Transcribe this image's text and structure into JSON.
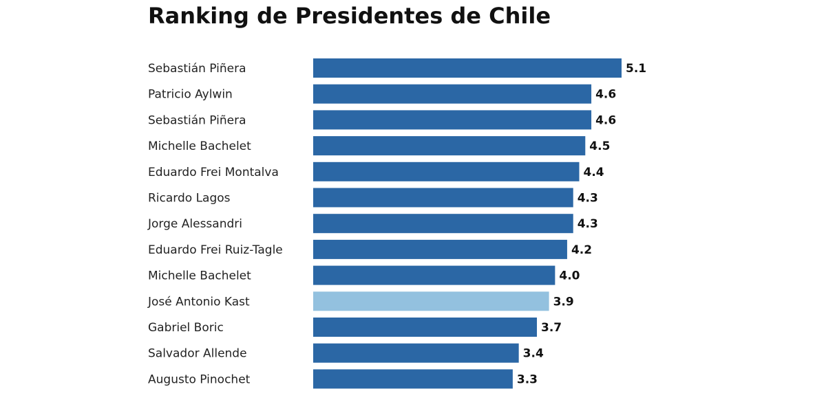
{
  "chart_data": {
    "type": "bar",
    "orientation": "horizontal",
    "title": "Ranking de Presidentes de Chile",
    "categories": [
      "Sebastián Piñera",
      "Patricio Aylwin",
      "Sebastián Piñera",
      "Michelle Bachelet",
      "Eduardo Frei Montalva",
      "Ricardo Lagos",
      "Jorge Alessandri",
      "Eduardo Frei Ruiz-Tagle",
      "Michelle Bachelet",
      "José Antonio Kast",
      "Gabriel Boric",
      "Salvador Allende",
      "Augusto Pinochet"
    ],
    "values": [
      5.1,
      4.6,
      4.6,
      4.5,
      4.4,
      4.3,
      4.3,
      4.2,
      4.0,
      3.9,
      3.7,
      3.4,
      3.3
    ],
    "value_labels": [
      "5.1",
      "4.6",
      "4.6",
      "4.5",
      "4.4",
      "4.3",
      "4.3",
      "4.2",
      "4.0",
      "3.9",
      "3.7",
      "3.4",
      "3.3"
    ],
    "highlight": "José Antonio Kast",
    "colors": {
      "default": "#2b67a5",
      "highlight": "#93c1df"
    },
    "xlim": [
      0,
      5.1
    ],
    "grid": false,
    "axes_visible": false
  }
}
